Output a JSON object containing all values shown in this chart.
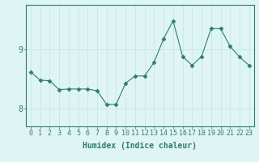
{
  "x": [
    0,
    1,
    2,
    3,
    4,
    5,
    6,
    7,
    8,
    9,
    10,
    11,
    12,
    13,
    14,
    15,
    16,
    17,
    18,
    19,
    20,
    21,
    22,
    23
  ],
  "y": [
    8.62,
    8.48,
    8.47,
    8.32,
    8.33,
    8.33,
    8.33,
    8.3,
    8.07,
    8.07,
    8.43,
    8.55,
    8.55,
    8.78,
    9.18,
    9.48,
    8.88,
    8.73,
    8.88,
    9.35,
    9.35,
    9.05,
    8.87,
    8.73
  ],
  "line_color": "#2e7d6e",
  "marker": "D",
  "marker_size": 2.5,
  "bg_color": "#dff4f4",
  "grid_color": "#c8e6e6",
  "xlabel": "Humidex (Indice chaleur)",
  "yticks": [
    8,
    9
  ],
  "ylim": [
    7.7,
    9.75
  ],
  "xlim": [
    -0.5,
    23.5
  ],
  "label_fontsize": 7,
  "tick_fontsize": 6
}
